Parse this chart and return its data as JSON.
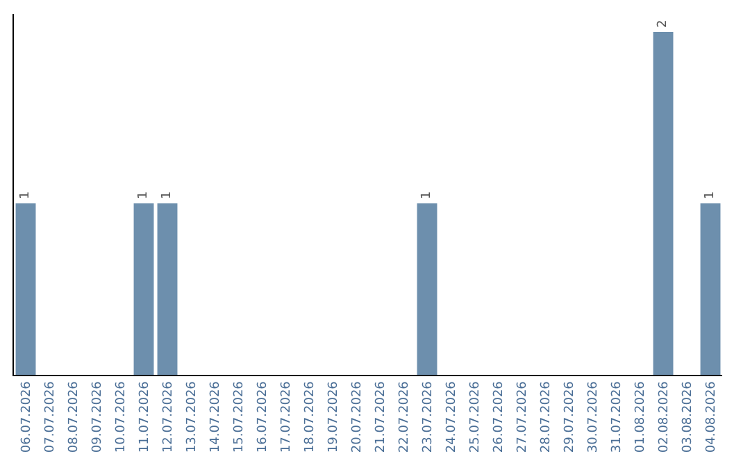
{
  "chart_data": {
    "type": "bar",
    "categories": [
      "06.07.2026",
      "07.07.2026",
      "08.07.2026",
      "09.07.2026",
      "10.07.2026",
      "11.07.2026",
      "12.07.2026",
      "13.07.2026",
      "14.07.2026",
      "15.07.2026",
      "16.07.2026",
      "17.07.2026",
      "18.07.2026",
      "19.07.2026",
      "20.07.2026",
      "21.07.2026",
      "22.07.2026",
      "23.07.2026",
      "24.07.2026",
      "25.07.2026",
      "26.07.2026",
      "27.07.2026",
      "28.07.2026",
      "29.07.2026",
      "30.07.2026",
      "31.07.2026",
      "01.08.2026",
      "02.08.2026",
      "03.08.2026",
      "04.08.2026"
    ],
    "values": [
      1,
      0,
      0,
      0,
      0,
      1,
      1,
      0,
      0,
      0,
      0,
      0,
      0,
      0,
      0,
      0,
      0,
      1,
      0,
      0,
      0,
      0,
      0,
      0,
      0,
      0,
      0,
      2,
      0,
      1
    ],
    "value_labels": [
      "1",
      null,
      null,
      null,
      null,
      "1",
      "1",
      null,
      null,
      null,
      null,
      null,
      null,
      null,
      null,
      null,
      null,
      "1",
      null,
      null,
      null,
      null,
      null,
      null,
      null,
      null,
      null,
      "2",
      null,
      "1"
    ],
    "color": "#6d8fad",
    "legend": false
  }
}
